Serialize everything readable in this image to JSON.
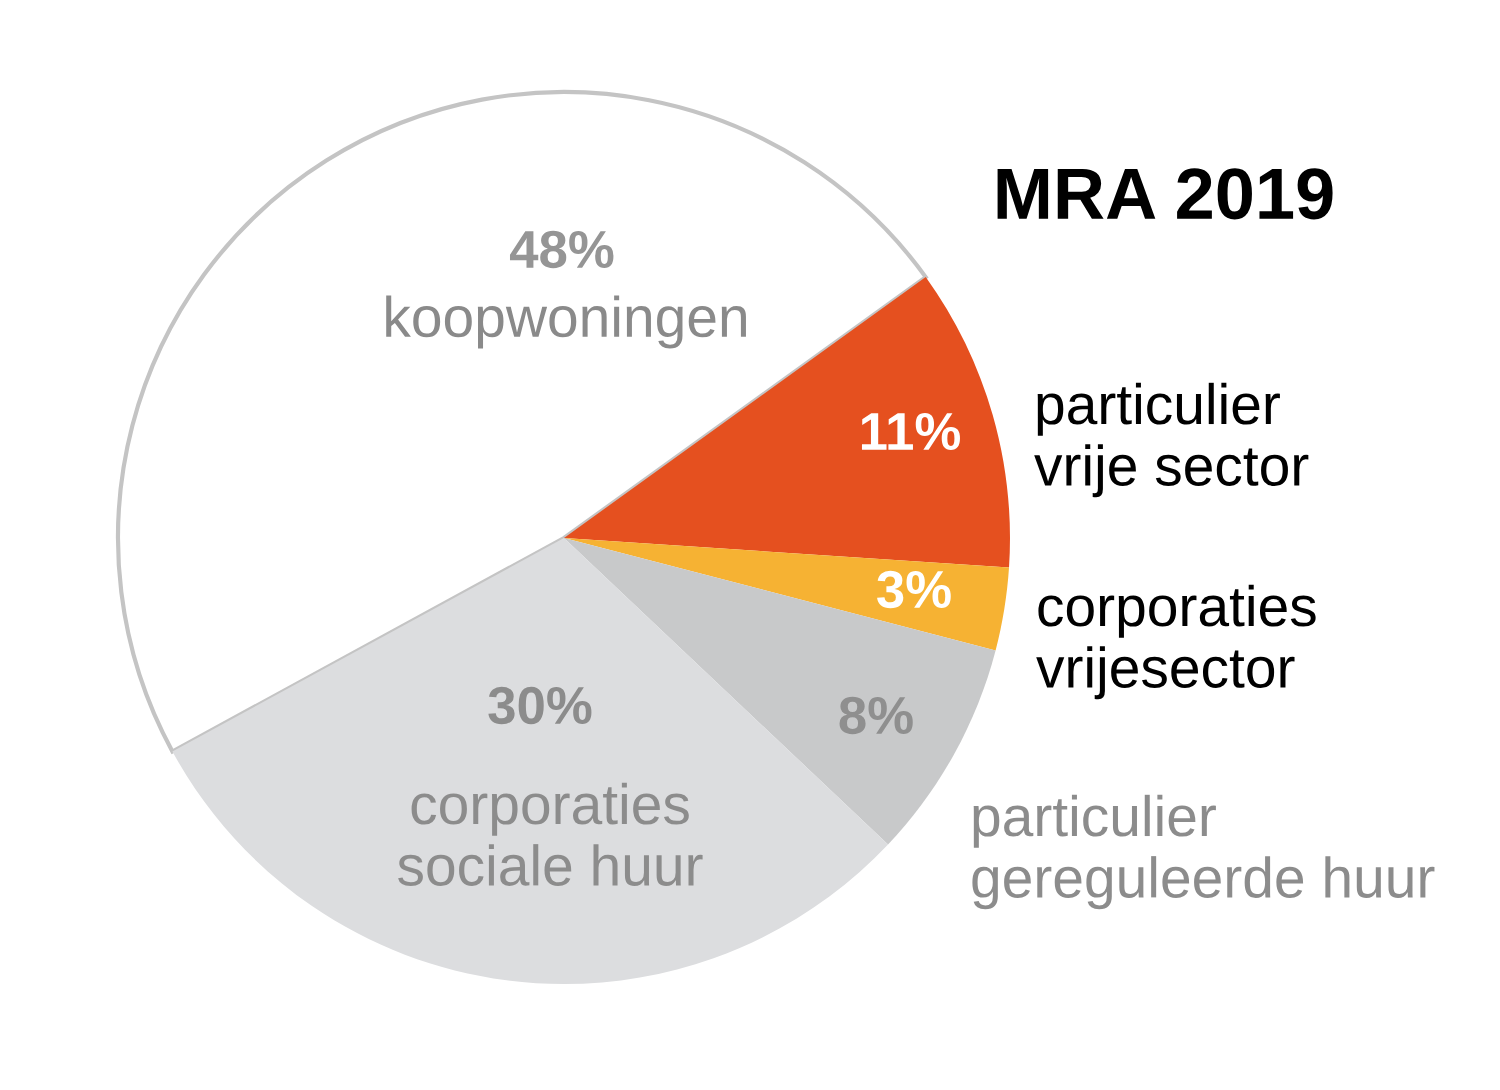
{
  "chart_data": {
    "type": "pie",
    "title": "MRA 2019",
    "categories": [
      "koopwoningen",
      "particulier vrije sector",
      "corporaties vrijesector",
      "particulier gereguleerde huur",
      "corporaties sociale huur"
    ],
    "values": [
      48,
      11,
      3,
      8,
      30
    ],
    "colors": [
      "#ffffff",
      "#e5501f",
      "#f6b233",
      "#c8c9ca",
      "#dcdddf"
    ],
    "value_labels": [
      "48%",
      "11%",
      "3%",
      "8%",
      "30%"
    ]
  }
}
